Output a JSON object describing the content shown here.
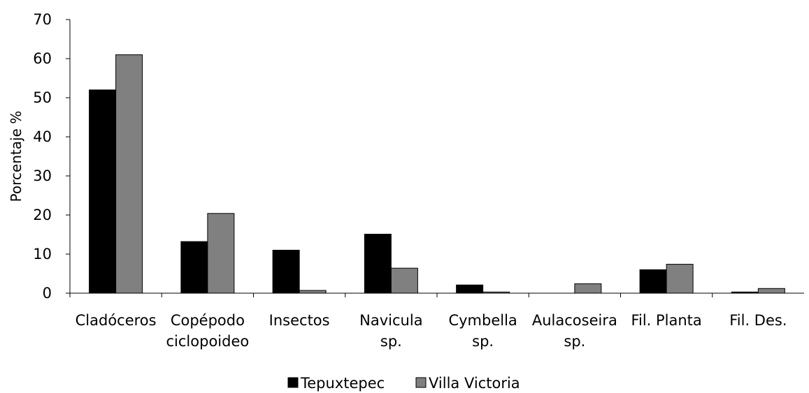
{
  "chart_data": {
    "type": "bar",
    "title": "",
    "xlabel": "",
    "ylabel": "Porcentaje %",
    "ylim": [
      0,
      70
    ],
    "yticks": [
      0,
      10,
      20,
      30,
      40,
      50,
      60,
      70
    ],
    "grid": false,
    "legend_position": "bottom",
    "categories": [
      [
        "Cladóceros"
      ],
      [
        "Copépodo",
        "ciclopoideo"
      ],
      [
        "Insectos"
      ],
      [
        "Navicula",
        "sp."
      ],
      [
        "Cymbella",
        "sp."
      ],
      [
        "Aulacoseira",
        "sp."
      ],
      [
        "Fil. Planta"
      ],
      [
        "Fil. Des."
      ]
    ],
    "series": [
      {
        "name": "Tepuxtepec",
        "color": "#000000",
        "values": [
          52,
          13.2,
          11,
          15.1,
          2.1,
          0,
          6,
          0.3
        ]
      },
      {
        "name": "Villa Victoria",
        "color": "#808080",
        "values": [
          61,
          20.4,
          0.7,
          6.4,
          0.3,
          2.4,
          7.4,
          1.2
        ]
      }
    ]
  }
}
